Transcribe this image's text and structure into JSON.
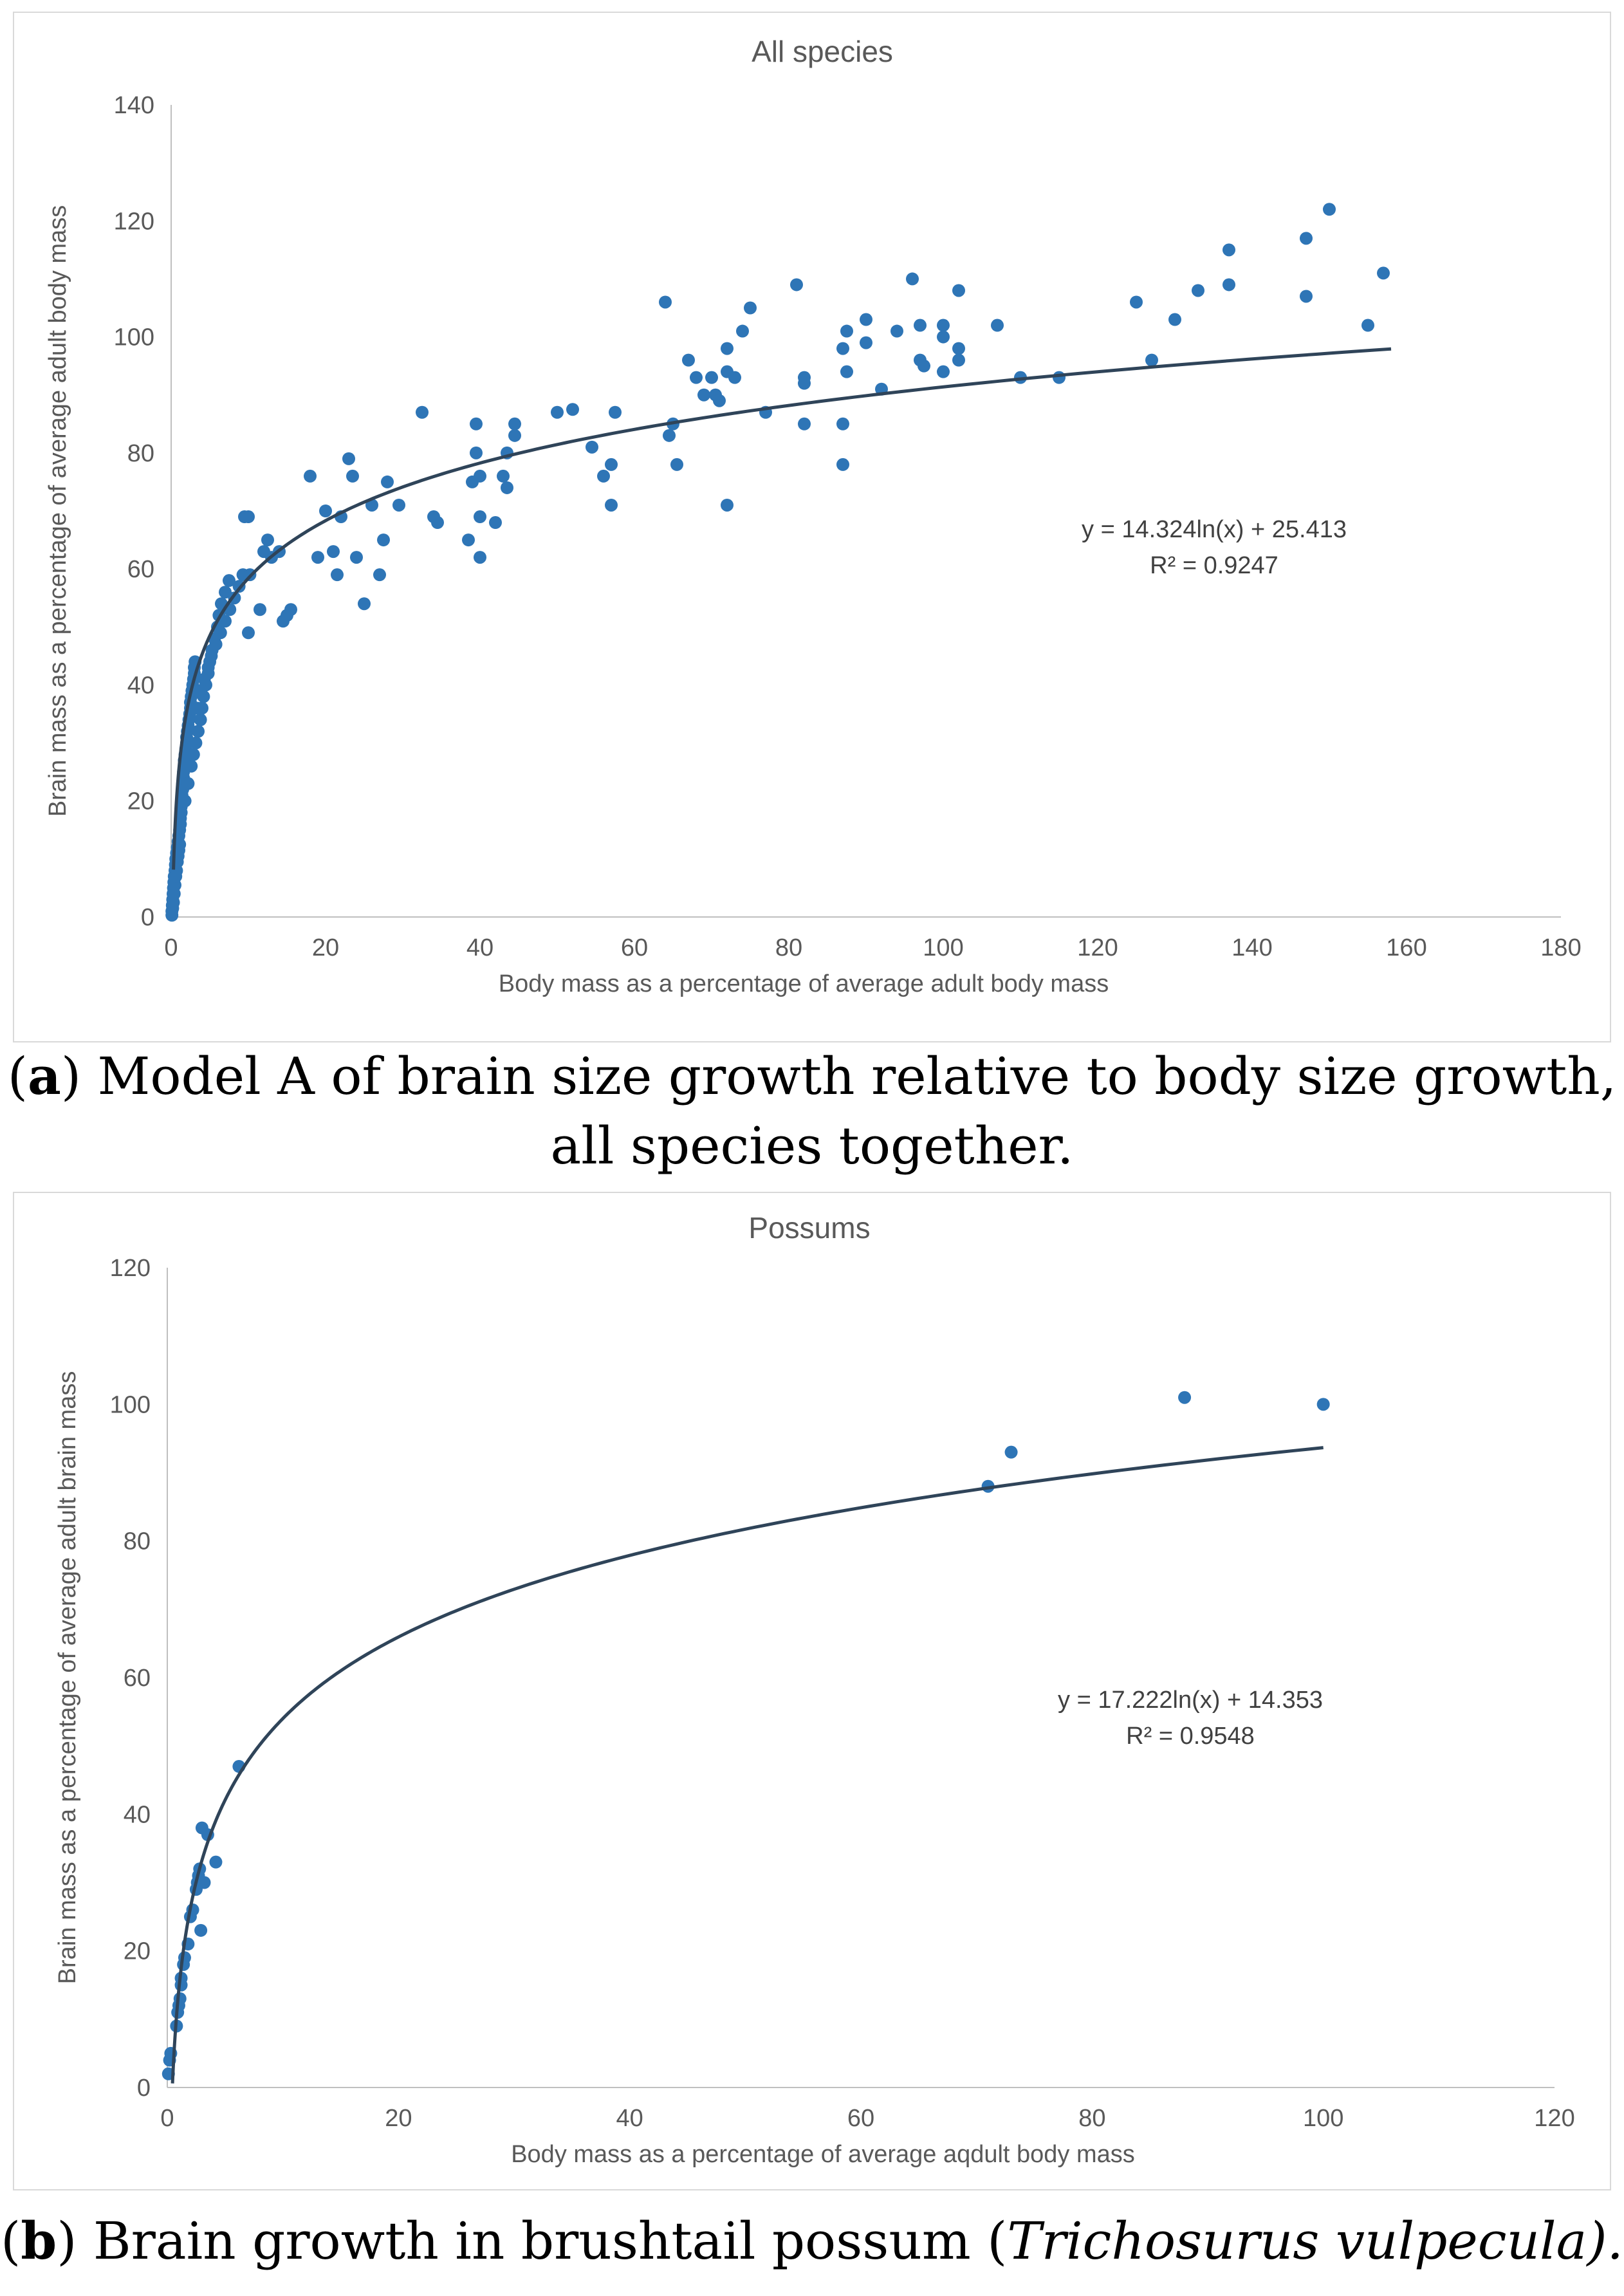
{
  "chart_data": [
    {
      "type": "scatter",
      "title": "All species",
      "xlabel": "Body mass as a percentage of average adult body mass",
      "ylabel": "Brain mass as a percentage of average adult body mass",
      "xlim": [
        0,
        180
      ],
      "ylim": [
        0,
        140
      ],
      "xticks": [
        0,
        20,
        40,
        60,
        80,
        100,
        120,
        140,
        160,
        180
      ],
      "yticks": [
        0,
        20,
        40,
        60,
        80,
        100,
        120,
        140
      ],
      "marker_color": "#2e75b6",
      "trendline_color": "#2f4459",
      "trendline": {
        "type": "logarithmic",
        "a": 14.324,
        "b": 25.413,
        "r2": 0.9247,
        "x_range": [
          0.3,
          158
        ]
      },
      "equation_text": "y = 14.324ln(x) + 25.413",
      "r2_text": "R² = 0.9247",
      "points": [
        [
          0.1,
          0.3
        ],
        [
          0.1,
          1
        ],
        [
          0.15,
          2
        ],
        [
          0.2,
          3
        ],
        [
          0.2,
          1.5
        ],
        [
          0.25,
          4
        ],
        [
          0.3,
          5
        ],
        [
          0.3,
          2.5
        ],
        [
          0.35,
          6
        ],
        [
          0.4,
          7
        ],
        [
          0.4,
          4
        ],
        [
          0.5,
          8
        ],
        [
          0.5,
          5.5
        ],
        [
          0.55,
          9
        ],
        [
          0.6,
          10
        ],
        [
          0.6,
          7
        ],
        [
          0.7,
          11
        ],
        [
          0.7,
          8
        ],
        [
          0.8,
          12
        ],
        [
          0.8,
          9.5
        ],
        [
          0.9,
          13
        ],
        [
          0.9,
          10.5
        ],
        [
          1,
          14
        ],
        [
          1,
          11.5
        ],
        [
          1.1,
          15
        ],
        [
          1.1,
          12.5
        ],
        [
          1.2,
          16
        ],
        [
          1.2,
          17
        ],
        [
          1.3,
          18
        ],
        [
          1.3,
          19
        ],
        [
          1.4,
          20
        ],
        [
          1.4,
          21
        ],
        [
          1.5,
          22
        ],
        [
          1.5,
          23
        ],
        [
          1.6,
          24
        ],
        [
          1.6,
          25
        ],
        [
          1.7,
          26
        ],
        [
          1.7,
          27
        ],
        [
          1.8,
          28
        ],
        [
          1.9,
          29
        ],
        [
          2,
          30
        ],
        [
          2,
          31
        ],
        [
          2.1,
          32
        ],
        [
          2.2,
          33
        ],
        [
          2.3,
          34
        ],
        [
          2.4,
          35
        ],
        [
          2.5,
          36
        ],
        [
          2.5,
          37
        ],
        [
          2.6,
          38
        ],
        [
          2.7,
          39
        ],
        [
          2.8,
          40
        ],
        [
          2.9,
          41
        ],
        [
          3,
          42
        ],
        [
          3,
          43
        ],
        [
          3.1,
          44
        ],
        [
          1.8,
          20
        ],
        [
          2.2,
          23
        ],
        [
          2.6,
          26
        ],
        [
          2.9,
          28
        ],
        [
          3.2,
          30
        ],
        [
          3.5,
          32
        ],
        [
          3.8,
          34
        ],
        [
          4,
          36
        ],
        [
          4.2,
          38
        ],
        [
          4.5,
          40
        ],
        [
          4.8,
          42
        ],
        [
          5,
          44
        ],
        [
          5.3,
          46
        ],
        [
          5.6,
          48
        ],
        [
          6,
          50
        ],
        [
          6.2,
          52
        ],
        [
          6.5,
          54
        ],
        [
          7,
          56
        ],
        [
          7.5,
          58
        ],
        [
          3.4,
          36
        ],
        [
          3.8,
          39
        ],
        [
          4.3,
          41
        ],
        [
          4.8,
          43
        ],
        [
          5.2,
          45
        ],
        [
          5.8,
          47
        ],
        [
          6.4,
          49
        ],
        [
          7,
          51
        ],
        [
          7.6,
          53
        ],
        [
          8.2,
          55
        ],
        [
          8.8,
          57
        ],
        [
          9.3,
          59
        ],
        [
          10,
          49
        ],
        [
          10,
          69
        ],
        [
          9.5,
          69
        ],
        [
          10.2,
          59
        ],
        [
          11.5,
          53
        ],
        [
          12,
          63
        ],
        [
          12.5,
          65
        ],
        [
          13,
          62
        ],
        [
          14,
          63
        ],
        [
          14.5,
          51
        ],
        [
          15,
          52
        ],
        [
          15.5,
          53
        ],
        [
          18,
          76
        ],
        [
          19,
          62
        ],
        [
          20,
          70
        ],
        [
          21,
          63
        ],
        [
          21.5,
          59
        ],
        [
          22,
          69
        ],
        [
          23,
          79
        ],
        [
          23.5,
          76
        ],
        [
          24,
          62
        ],
        [
          25,
          54
        ],
        [
          26,
          71
        ],
        [
          27,
          59
        ],
        [
          27.5,
          65
        ],
        [
          28,
          75
        ],
        [
          29.5,
          71
        ],
        [
          32.5,
          87
        ],
        [
          34,
          69
        ],
        [
          34.5,
          68
        ],
        [
          39,
          75
        ],
        [
          39.5,
          80
        ],
        [
          39.5,
          85
        ],
        [
          40,
          76
        ],
        [
          40,
          69
        ],
        [
          40,
          62
        ],
        [
          38.5,
          65
        ],
        [
          42,
          68
        ],
        [
          43,
          76
        ],
        [
          43.5,
          74
        ],
        [
          43.5,
          80
        ],
        [
          44.5,
          85
        ],
        [
          44.5,
          83
        ],
        [
          50,
          87
        ],
        [
          52,
          87.5
        ],
        [
          54.5,
          81
        ],
        [
          56,
          76
        ],
        [
          57,
          78
        ],
        [
          57,
          71
        ],
        [
          57.5,
          87
        ],
        [
          64,
          106
        ],
        [
          64.5,
          83
        ],
        [
          65,
          85
        ],
        [
          65.5,
          78
        ],
        [
          67,
          96
        ],
        [
          68,
          93
        ],
        [
          69,
          90
        ],
        [
          70,
          93
        ],
        [
          70.5,
          90
        ],
        [
          71,
          89
        ],
        [
          72,
          98
        ],
        [
          72,
          94
        ],
        [
          72,
          71
        ],
        [
          73,
          93
        ],
        [
          74,
          101
        ],
        [
          75,
          105
        ],
        [
          77,
          87
        ],
        [
          81,
          109
        ],
        [
          82,
          93
        ],
        [
          82,
          92
        ],
        [
          82,
          85
        ],
        [
          87,
          98
        ],
        [
          87,
          85
        ],
        [
          87,
          78
        ],
        [
          87.5,
          101
        ],
        [
          87.5,
          94
        ],
        [
          90,
          103
        ],
        [
          90,
          99
        ],
        [
          92,
          91
        ],
        [
          94,
          101
        ],
        [
          96,
          110
        ],
        [
          97,
          96
        ],
        [
          97,
          102
        ],
        [
          97.5,
          95
        ],
        [
          100,
          102
        ],
        [
          100,
          100
        ],
        [
          100,
          94
        ],
        [
          102,
          108
        ],
        [
          102,
          98
        ],
        [
          102,
          96
        ],
        [
          107,
          102
        ],
        [
          110,
          93
        ],
        [
          115,
          93
        ],
        [
          125,
          106
        ],
        [
          127,
          96
        ],
        [
          130,
          103
        ],
        [
          133,
          108
        ],
        [
          137,
          115
        ],
        [
          137,
          109
        ],
        [
          147,
          117
        ],
        [
          147,
          107
        ],
        [
          150,
          122
        ],
        [
          155,
          102
        ],
        [
          157,
          111
        ]
      ]
    },
    {
      "type": "scatter",
      "title": "Possums",
      "xlabel": "Body mass as a percentage of average aqdult body mass",
      "ylabel": "Brain mass as a percentage of average adult brain  mass",
      "xlim": [
        0,
        120
      ],
      "ylim": [
        0,
        120
      ],
      "xticks": [
        0,
        20,
        40,
        60,
        80,
        100,
        120
      ],
      "yticks": [
        0,
        20,
        40,
        60,
        80,
        100,
        120
      ],
      "marker_color": "#2e75b6",
      "trendline_color": "#2f4459",
      "trendline": {
        "type": "logarithmic",
        "a": 17.222,
        "b": 14.353,
        "r2": 0.9548,
        "x_range": [
          0.45,
          100
        ]
      },
      "equation_text": "y = 17.222ln(x) + 14.353",
      "r2_text": "R² = 0.9548",
      "points": [
        [
          0.1,
          2
        ],
        [
          0.2,
          4
        ],
        [
          0.3,
          5
        ],
        [
          0.8,
          9
        ],
        [
          0.9,
          11
        ],
        [
          1,
          12
        ],
        [
          1.1,
          13
        ],
        [
          1.2,
          15
        ],
        [
          1.2,
          16
        ],
        [
          1.4,
          18
        ],
        [
          1.5,
          19
        ],
        [
          1.8,
          21
        ],
        [
          2,
          25
        ],
        [
          2.2,
          26
        ],
        [
          2.5,
          29
        ],
        [
          2.6,
          30
        ],
        [
          2.7,
          31
        ],
        [
          2.8,
          32
        ],
        [
          3,
          38
        ],
        [
          3.2,
          30
        ],
        [
          3.5,
          37
        ],
        [
          4.2,
          33
        ],
        [
          6.2,
          47
        ],
        [
          2.9,
          23
        ],
        [
          71,
          88
        ],
        [
          73,
          93
        ],
        [
          88,
          101
        ],
        [
          100,
          100
        ]
      ]
    }
  ],
  "captions": {
    "a_label": "a",
    "a_text": " Model A of brain size growth relative to body size growth, all species together.",
    "b_label": "b",
    "b_text_before": " Brain growth in brushtail possum (",
    "b_text_italic": "Trichosurus vulpecula).",
    "b_text_after": ""
  }
}
